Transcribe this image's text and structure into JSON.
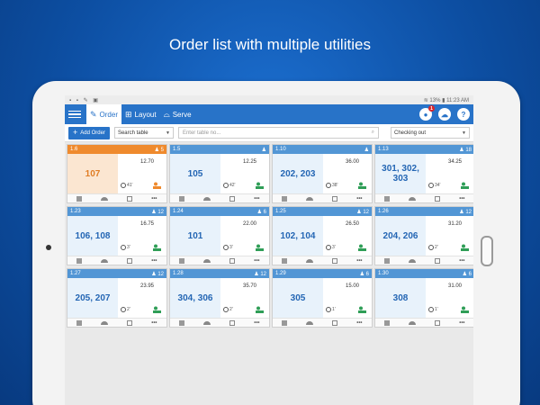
{
  "headline": "Order list with multiple utilities",
  "status_bar": {
    "left_icons": [
      "sd-card-icon",
      "clipboard-icon",
      "wrench-icon",
      "image-icon",
      "settings-icon"
    ],
    "battery": "13%",
    "time": "11:23 AM"
  },
  "app_bar": {
    "tabs": [
      {
        "label": "Order",
        "icon": "edit-icon",
        "active": true
      },
      {
        "label": "Layout",
        "icon": "map-icon",
        "active": false
      },
      {
        "label": "Serve",
        "icon": "cloche-icon",
        "active": false
      }
    ],
    "notification_count": "1",
    "help": "?"
  },
  "toolbar": {
    "add_order": "Add Order",
    "search_scope": "Search table",
    "search_placeholder": "Enter table no...",
    "status_filter": "Checking out"
  },
  "colors": {
    "accent": "#2873c8",
    "card_header": "#5296d5",
    "highlight": "#ef8a2d"
  },
  "orders": [
    {
      "code": "1.6",
      "guests": "5",
      "tables": "107",
      "amount": "12.70",
      "time": "41'",
      "highlight": true
    },
    {
      "code": "1.5",
      "guests": "",
      "tables": "105",
      "amount": "12.25",
      "time": "42'",
      "highlight": false
    },
    {
      "code": "1.10",
      "guests": "",
      "tables": "202, 203",
      "amount": "36.00",
      "time": "38'",
      "highlight": false
    },
    {
      "code": "1.13",
      "guests": "18",
      "tables": "301, 302, 303",
      "amount": "34.25",
      "time": "34'",
      "highlight": false
    },
    {
      "code": "1.23",
      "guests": "12",
      "tables": "106, 108",
      "amount": "16.75",
      "time": "3'",
      "highlight": false
    },
    {
      "code": "1.24",
      "guests": "6",
      "tables": "101",
      "amount": "22.00",
      "time": "3'",
      "highlight": false
    },
    {
      "code": "1.25",
      "guests": "12",
      "tables": "102, 104",
      "amount": "26.50",
      "time": "3'",
      "highlight": false
    },
    {
      "code": "1.26",
      "guests": "12",
      "tables": "204, 206",
      "amount": "31.20",
      "time": "2'",
      "highlight": false
    },
    {
      "code": "1.27",
      "guests": "12",
      "tables": "205, 207",
      "amount": "23.95",
      "time": "2'",
      "highlight": false
    },
    {
      "code": "1.28",
      "guests": "12",
      "tables": "304, 306",
      "amount": "35.70",
      "time": "2'",
      "highlight": false
    },
    {
      "code": "1.29",
      "guests": "6",
      "tables": "305",
      "amount": "15.00",
      "time": "1'",
      "highlight": false
    },
    {
      "code": "1.30",
      "guests": "6",
      "tables": "308",
      "amount": "31.00",
      "time": "1'",
      "highlight": false
    }
  ]
}
